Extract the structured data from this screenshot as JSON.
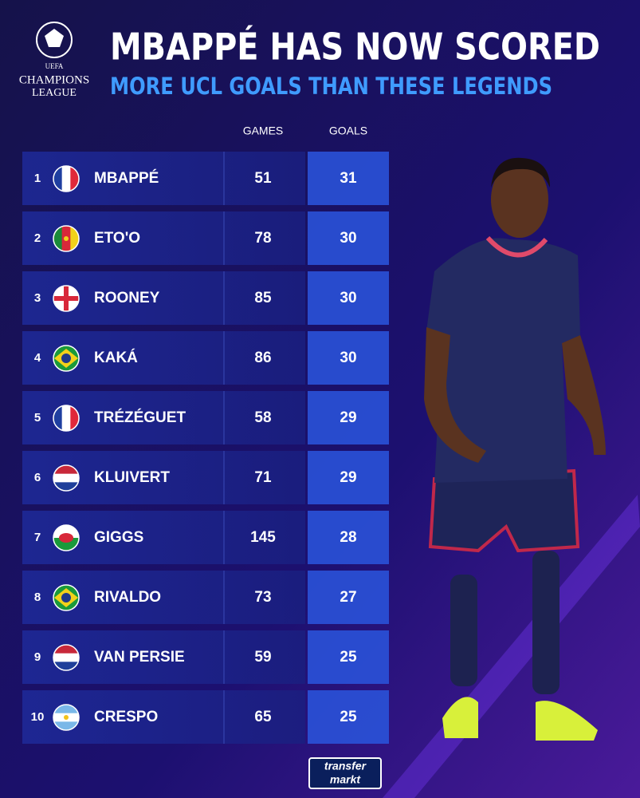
{
  "logo": {
    "line1": "UEFA",
    "line2": "CHAMPIONS",
    "line3": "LEAGUE"
  },
  "header": {
    "title": "MBAPPÉ HAS NOW SCORED",
    "subtitle": "MORE UCL GOALS THAN THESE LEGENDS"
  },
  "table": {
    "columns": [
      "GAMES",
      "GOALS"
    ],
    "rows": [
      [
        1,
        "MBAPPÉ",
        51,
        31
      ],
      [
        2,
        "ETO'O",
        78,
        30
      ],
      [
        3,
        "ROONEY",
        85,
        30
      ],
      [
        4,
        "KAKÁ",
        86,
        30
      ],
      [
        5,
        "TRÉZÉGUET",
        58,
        29
      ],
      [
        6,
        "KLUIVERT",
        71,
        29
      ],
      [
        7,
        "GIGGS",
        145,
        28
      ],
      [
        8,
        "RIVALDO",
        73,
        27
      ],
      [
        9,
        "VAN PERSIE",
        59,
        25
      ],
      [
        10,
        "CRESPO",
        65,
        25
      ]
    ]
  },
  "footer": {
    "line1": "transfer",
    "line2": "markt"
  }
}
